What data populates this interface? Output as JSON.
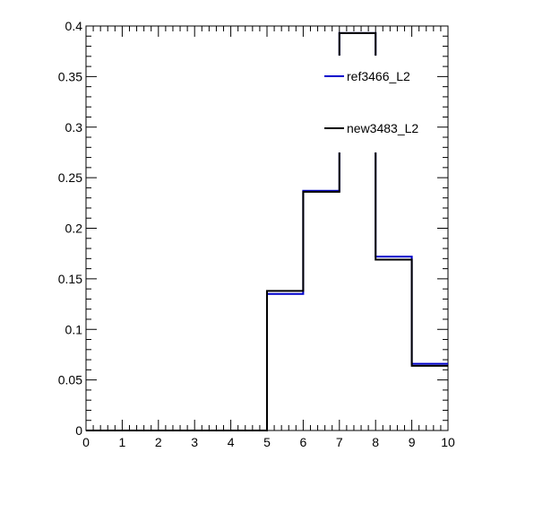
{
  "chart_data": {
    "type": "step-histogram",
    "title": "",
    "xlabel": "",
    "ylabel": "",
    "xlim": [
      0,
      10
    ],
    "ylim": [
      0,
      0.4
    ],
    "x_ticks": [
      0,
      1,
      2,
      3,
      4,
      5,
      6,
      7,
      8,
      9,
      10
    ],
    "x_tick_labels": [
      "0",
      "1",
      "2",
      "3",
      "4",
      "5",
      "6",
      "7",
      "8",
      "9",
      "10"
    ],
    "y_ticks": [
      0,
      0.05,
      0.1,
      0.15,
      0.2,
      0.25,
      0.3,
      0.35,
      0.4
    ],
    "y_tick_labels": [
      "0",
      "0.05",
      "0.1",
      "0.15",
      "0.2",
      "0.25",
      "0.3",
      "0.35",
      "0.4"
    ],
    "bin_edges": [
      0,
      1,
      2,
      3,
      4,
      5,
      6,
      7,
      8,
      9,
      10
    ],
    "legend_placement": "top-right",
    "series": [
      {
        "name": "ref3466_L2",
        "color": "#0000cc",
        "values": [
          0,
          0,
          0,
          0,
          0,
          0.135,
          0.237,
          0.393,
          0.172,
          0.066
        ]
      },
      {
        "name": "new3483_L2",
        "color": "#000000",
        "values": [
          0,
          0,
          0,
          0,
          0,
          0.138,
          0.236,
          0.393,
          0.169,
          0.064
        ]
      }
    ]
  }
}
